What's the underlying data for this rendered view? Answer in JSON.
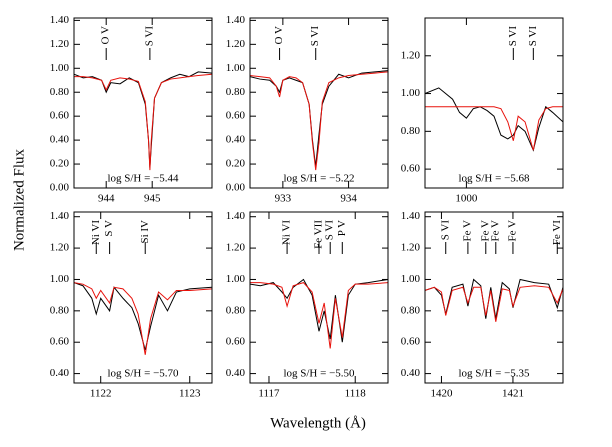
{
  "xlabel": "Wavelength (Å)",
  "ylabel": "Normalized Flux",
  "chart_data": [
    {
      "type": "line",
      "annotation": "log S/H = −5.44",
      "xlim": [
        943.3,
        946.3
      ],
      "xticks": [
        944,
        945
      ],
      "ylim": [
        0,
        1.42
      ],
      "yticks": [
        {
          "value": 0,
          "label": "0.00"
        },
        {
          "value": 0.2,
          "label": "0.20"
        },
        {
          "value": 0.4,
          "label": "0.40"
        },
        {
          "value": 0.6,
          "label": "0.60"
        },
        {
          "value": 0.8,
          "label": "0.80"
        },
        {
          "value": 1,
          "label": "1.00"
        },
        {
          "value": 1.2,
          "label": "1.20"
        },
        {
          "value": 1.4,
          "label": "1.40"
        }
      ],
      "lines": [
        {
          "label": "O V",
          "x": 944.0
        },
        {
          "label": "S VI",
          "x": 944.95
        }
      ],
      "x": [
        943.3,
        943.5,
        943.7,
        943.9,
        944.0,
        944.1,
        944.3,
        944.5,
        944.7,
        944.85,
        944.92,
        944.95,
        944.98,
        945.05,
        945.2,
        945.4,
        945.6,
        945.8,
        946.0,
        946.3
      ],
      "series": [
        {
          "color": "#000000",
          "values": [
            0.95,
            0.92,
            0.93,
            0.9,
            0.8,
            0.88,
            0.87,
            0.92,
            0.88,
            0.7,
            0.4,
            0.17,
            0.35,
            0.75,
            0.88,
            0.92,
            0.95,
            0.93,
            0.97,
            0.96
          ]
        },
        {
          "color": "#e8120c",
          "values": [
            0.93,
            0.93,
            0.92,
            0.9,
            0.82,
            0.9,
            0.92,
            0.91,
            0.89,
            0.72,
            0.4,
            0.15,
            0.4,
            0.75,
            0.88,
            0.91,
            0.92,
            0.93,
            0.94,
            0.95
          ]
        }
      ]
    },
    {
      "type": "line",
      "annotation": "log S/H = −5.22",
      "xlim": [
        932.5,
        934.6
      ],
      "xticks": [
        933,
        934
      ],
      "ylim": [
        0,
        1.42
      ],
      "yticks": [
        {
          "value": 0,
          "label": "0.00"
        },
        {
          "value": 0.2,
          "label": "0.20"
        },
        {
          "value": 0.4,
          "label": "0.40"
        },
        {
          "value": 0.6,
          "label": "0.60"
        },
        {
          "value": 0.8,
          "label": "0.80"
        },
        {
          "value": 1,
          "label": "1.00"
        },
        {
          "value": 1.2,
          "label": "1.20"
        },
        {
          "value": 1.4,
          "label": "1.40"
        }
      ],
      "lines": [
        {
          "label": "O V",
          "x": 932.95
        },
        {
          "label": "S VI",
          "x": 933.5
        }
      ],
      "x": [
        932.5,
        932.65,
        932.8,
        932.9,
        932.95,
        933.0,
        933.1,
        933.2,
        933.3,
        933.4,
        933.45,
        933.5,
        933.55,
        933.6,
        933.7,
        933.85,
        934.0,
        934.2,
        934.4,
        934.6
      ],
      "series": [
        {
          "color": "#000000",
          "values": [
            0.93,
            0.91,
            0.9,
            0.85,
            0.8,
            0.9,
            0.92,
            0.9,
            0.88,
            0.7,
            0.4,
            0.18,
            0.45,
            0.7,
            0.85,
            0.95,
            0.92,
            0.96,
            0.97,
            0.98
          ]
        },
        {
          "color": "#e8120c",
          "values": [
            0.94,
            0.93,
            0.92,
            0.85,
            0.76,
            0.9,
            0.93,
            0.92,
            0.88,
            0.7,
            0.38,
            0.15,
            0.38,
            0.72,
            0.88,
            0.92,
            0.94,
            0.95,
            0.96,
            0.97
          ]
        }
      ]
    },
    {
      "type": "line",
      "annotation": "log S/H = −5.68",
      "xlim": [
        999.4,
        1001.4
      ],
      "xticks": [
        1000
      ],
      "ylim": [
        0.5,
        1.4
      ],
      "yticks": [
        {
          "value": 0.6,
          "label": "0.60"
        },
        {
          "value": 0.8,
          "label": "0.80"
        },
        {
          "value": 1,
          "label": "1.00"
        },
        {
          "value": 1.2,
          "label": "1.20"
        }
      ],
      "lines": [
        {
          "label": "S VI",
          "x": 1000.68
        },
        {
          "label": "S VI",
          "x": 1000.97
        }
      ],
      "x": [
        999.4,
        999.6,
        999.8,
        999.9,
        1000.0,
        1000.1,
        1000.2,
        1000.3,
        1000.4,
        1000.5,
        1000.6,
        1000.68,
        1000.75,
        1000.85,
        1000.97,
        1001.05,
        1001.15,
        1001.25,
        1001.4
      ],
      "series": [
        {
          "color": "#000000",
          "values": [
            1.0,
            1.03,
            0.97,
            0.9,
            0.87,
            0.92,
            0.93,
            0.91,
            0.88,
            0.78,
            0.76,
            0.78,
            0.83,
            0.8,
            0.7,
            0.82,
            0.93,
            0.9,
            0.85
          ]
        },
        {
          "color": "#e8120c",
          "values": [
            0.93,
            0.93,
            0.93,
            0.93,
            0.93,
            0.93,
            0.93,
            0.93,
            0.93,
            0.92,
            0.85,
            0.75,
            0.88,
            0.85,
            0.7,
            0.86,
            0.92,
            0.93,
            0.93
          ]
        }
      ]
    },
    {
      "type": "line",
      "annotation": "log S/H = −5.70",
      "xlim": [
        1121.7,
        1123.25
      ],
      "xticks": [
        1122,
        1123
      ],
      "ylim": [
        0.34,
        1.43
      ],
      "yticks": [
        {
          "value": 0.4,
          "label": "0.40"
        },
        {
          "value": 0.6,
          "label": "0.60"
        },
        {
          "value": 0.8,
          "label": "0.80"
        },
        {
          "value": 1,
          "label": "1.00"
        },
        {
          "value": 1.2,
          "label": "1.20"
        },
        {
          "value": 1.4,
          "label": "1.40"
        }
      ],
      "lines": [
        {
          "label": "Ni VI",
          "x": 1121.95
        },
        {
          "label": "S V",
          "x": 1122.1
        },
        {
          "label": "Si IV",
          "x": 1122.5
        }
      ],
      "x": [
        1121.7,
        1121.8,
        1121.9,
        1121.95,
        1122.0,
        1122.1,
        1122.15,
        1122.25,
        1122.35,
        1122.42,
        1122.5,
        1122.56,
        1122.65,
        1122.75,
        1122.85,
        1123.0,
        1123.25
      ],
      "series": [
        {
          "color": "#000000",
          "values": [
            0.98,
            0.96,
            0.88,
            0.78,
            0.88,
            0.8,
            0.95,
            0.88,
            0.82,
            0.72,
            0.55,
            0.7,
            0.9,
            0.8,
            0.92,
            0.94,
            0.95
          ]
        },
        {
          "color": "#e8120c",
          "values": [
            0.98,
            0.97,
            0.94,
            0.88,
            0.93,
            0.85,
            0.95,
            0.94,
            0.88,
            0.78,
            0.52,
            0.75,
            0.92,
            0.87,
            0.93,
            0.93,
            0.94
          ]
        }
      ]
    },
    {
      "type": "line",
      "annotation": "log S/H = −5.50",
      "xlim": [
        1116.78,
        1118.38
      ],
      "xticks": [
        1117,
        1118
      ],
      "ylim": [
        0.34,
        1.43
      ],
      "yticks": [
        {
          "value": 0.4,
          "label": "0.40"
        },
        {
          "value": 0.6,
          "label": "0.60"
        },
        {
          "value": 0.8,
          "label": "0.80"
        },
        {
          "value": 1,
          "label": "1.00"
        },
        {
          "value": 1.2,
          "label": "1.20"
        },
        {
          "value": 1.4,
          "label": "1.40"
        }
      ],
      "lines": [
        {
          "label": "Ni VI",
          "x": 1117.21
        },
        {
          "label": "Fe VII",
          "x": 1117.58
        },
        {
          "label": "S VI",
          "x": 1117.71
        },
        {
          "label": "P V",
          "x": 1117.85
        }
      ],
      "x": [
        1116.78,
        1116.9,
        1117.05,
        1117.15,
        1117.21,
        1117.28,
        1117.4,
        1117.5,
        1117.58,
        1117.64,
        1117.71,
        1117.77,
        1117.85,
        1117.92,
        1118.0,
        1118.15,
        1118.38
      ],
      "series": [
        {
          "color": "#000000",
          "values": [
            0.97,
            0.96,
            0.98,
            0.92,
            0.88,
            0.95,
            1.0,
            0.9,
            0.67,
            0.8,
            0.62,
            0.9,
            0.6,
            0.9,
            0.97,
            0.98,
            1.0
          ]
        },
        {
          "color": "#e8120c",
          "values": [
            0.98,
            0.98,
            0.97,
            0.95,
            0.83,
            0.96,
            0.98,
            0.92,
            0.72,
            0.85,
            0.56,
            0.88,
            0.63,
            0.93,
            0.97,
            0.97,
            0.98
          ]
        }
      ]
    },
    {
      "type": "line",
      "annotation": "log S/H = −5.35",
      "xlim": [
        1419.77,
        1421.7
      ],
      "xticks": [
        1420,
        1421
      ],
      "ylim": [
        0.34,
        1.43
      ],
      "yticks": [
        {
          "value": 0.4,
          "label": "0.40"
        },
        {
          "value": 0.6,
          "label": "0.60"
        },
        {
          "value": 0.8,
          "label": "0.80"
        },
        {
          "value": 1,
          "label": "1.00"
        },
        {
          "value": 1.2,
          "label": "1.20"
        },
        {
          "value": 1.4,
          "label": "1.40"
        }
      ],
      "lines": [
        {
          "label": "S VI",
          "x": 1420.06
        },
        {
          "label": "Fe V",
          "x": 1420.37
        },
        {
          "label": "Fe V",
          "x": 1420.62
        },
        {
          "label": "Fe V",
          "x": 1420.76
        },
        {
          "label": "Fe V",
          "x": 1421.0
        },
        {
          "label": "Fe VI",
          "x": 1421.62
        }
      ],
      "x": [
        1419.77,
        1419.9,
        1420.0,
        1420.06,
        1420.15,
        1420.3,
        1420.37,
        1420.45,
        1420.55,
        1420.62,
        1420.69,
        1420.76,
        1420.85,
        1420.95,
        1421.0,
        1421.1,
        1421.3,
        1421.5,
        1421.62,
        1421.7
      ],
      "series": [
        {
          "color": "#000000",
          "values": [
            0.93,
            0.95,
            0.9,
            0.78,
            0.95,
            0.97,
            0.83,
            1.0,
            0.96,
            0.75,
            0.95,
            0.75,
            0.98,
            0.94,
            0.82,
            1.0,
            0.98,
            0.97,
            0.82,
            0.95
          ]
        },
        {
          "color": "#e8120c",
          "values": [
            0.93,
            0.95,
            0.92,
            0.77,
            0.93,
            0.95,
            0.85,
            0.95,
            0.95,
            0.77,
            0.93,
            0.73,
            0.94,
            0.93,
            0.83,
            0.95,
            0.96,
            0.95,
            0.85,
            0.94
          ]
        }
      ]
    }
  ]
}
